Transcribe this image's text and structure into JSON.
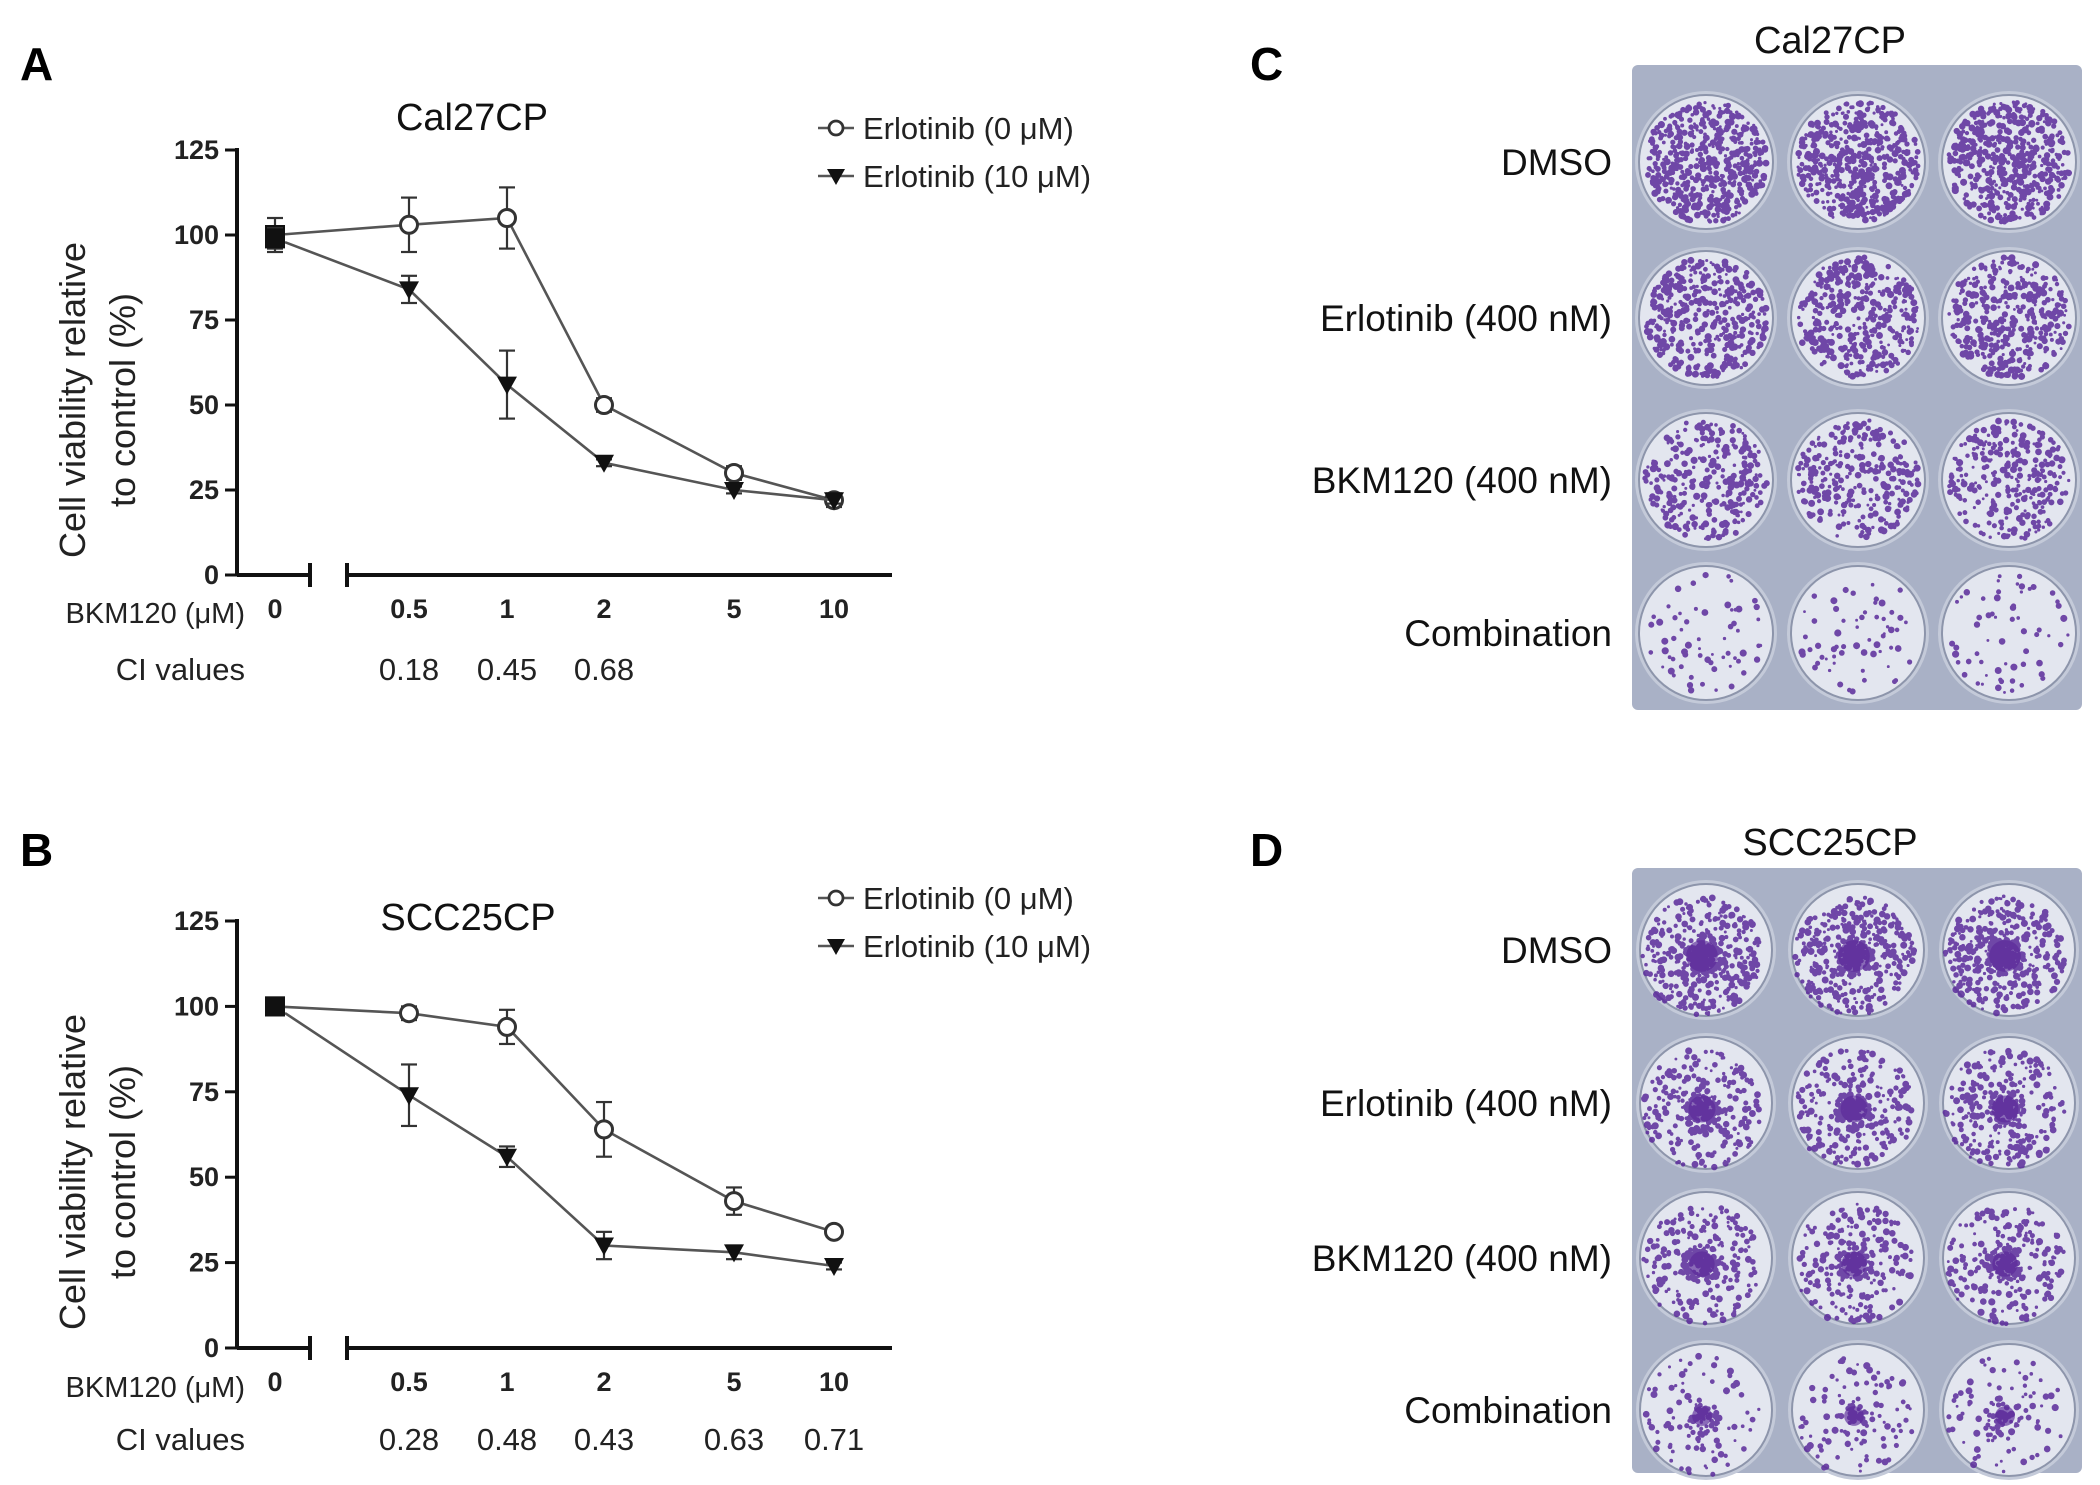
{
  "panels": [
    {
      "letter": "A"
    },
    {
      "letter": "B"
    },
    {
      "letter": "C"
    },
    {
      "letter": "D"
    }
  ],
  "chart_data": [
    {
      "type": "line",
      "title": "Cal27CP",
      "ylabel_line1": "Cell viability relative",
      "ylabel_line2": "to control (%)",
      "xlabel": "BKM120 (μM)",
      "ylim": [
        0,
        125
      ],
      "yticks": [
        "0",
        "25",
        "50",
        "75",
        "100",
        "125"
      ],
      "categories": [
        "0",
        "0.5",
        "1",
        "2",
        "5",
        "10"
      ],
      "legend_position": "top-right",
      "series": [
        {
          "name": "Erlotinib (0 μM)",
          "marker": "open-circle",
          "values": [
            100,
            103,
            105,
            50,
            30,
            22
          ],
          "errors": [
            5,
            8,
            9,
            2,
            2,
            2
          ]
        },
        {
          "name": "Erlotinib (10 μM)",
          "marker": "filled-triangle-down",
          "values": [
            99,
            84,
            56,
            33,
            25,
            22
          ],
          "errors": [
            3,
            4,
            10,
            1,
            1,
            1
          ]
        }
      ],
      "ci_label": "CI values",
      "ci_values": [
        {
          "category": "0.5",
          "value": "0.18"
        },
        {
          "category": "1",
          "value": "0.45"
        },
        {
          "category": "2",
          "value": "0.68"
        }
      ]
    },
    {
      "type": "line",
      "title": "SCC25CP",
      "ylabel_line1": "Cell viability relative",
      "ylabel_line2": "to control (%)",
      "xlabel": "BKM120 (μM)",
      "ylim": [
        0,
        125
      ],
      "yticks": [
        "0",
        "25",
        "50",
        "75",
        "100",
        "125"
      ],
      "categories": [
        "0",
        "0.5",
        "1",
        "2",
        "5",
        "10"
      ],
      "legend_position": "top-right",
      "series": [
        {
          "name": "Erlotinib (0 μM)",
          "marker": "open-circle",
          "values": [
            100,
            98,
            94,
            64,
            43,
            34
          ],
          "errors": [
            1,
            2,
            5,
            8,
            4,
            1
          ]
        },
        {
          "name": "Erlotinib (10 μM)",
          "marker": "filled-triangle-down",
          "values": [
            100,
            74,
            56,
            30,
            28,
            24
          ],
          "errors": [
            1,
            9,
            3,
            4,
            2,
            1
          ]
        }
      ],
      "ci_label": "CI values",
      "ci_values": [
        {
          "category": "0.5",
          "value": "0.28"
        },
        {
          "category": "1",
          "value": "0.48"
        },
        {
          "category": "2",
          "value": "0.43"
        },
        {
          "category": "5",
          "value": "0.63"
        },
        {
          "category": "10",
          "value": "0.71"
        }
      ]
    }
  ],
  "plates": [
    {
      "title": "Cal27CP",
      "rows": [
        "DMSO",
        "Erlotinib (400 nM)",
        "BKM120 (400 nM)",
        "Combination"
      ],
      "colony_density": [
        1.0,
        0.75,
        0.55,
        0.12
      ],
      "central_cluster": false
    },
    {
      "title": "SCC25CP",
      "rows": [
        "DMSO",
        "Erlotinib (400 nM)",
        "BKM120 (400 nM)",
        "Combination"
      ],
      "colony_density": [
        1.0,
        0.7,
        0.6,
        0.25
      ],
      "central_cluster": true
    }
  ],
  "colors": {
    "axis": "#111111",
    "series_line": "#555555",
    "plate_bg": "#a9b1c6",
    "well_bg": "#e3e6ef",
    "stain": "#5a2a9a"
  }
}
